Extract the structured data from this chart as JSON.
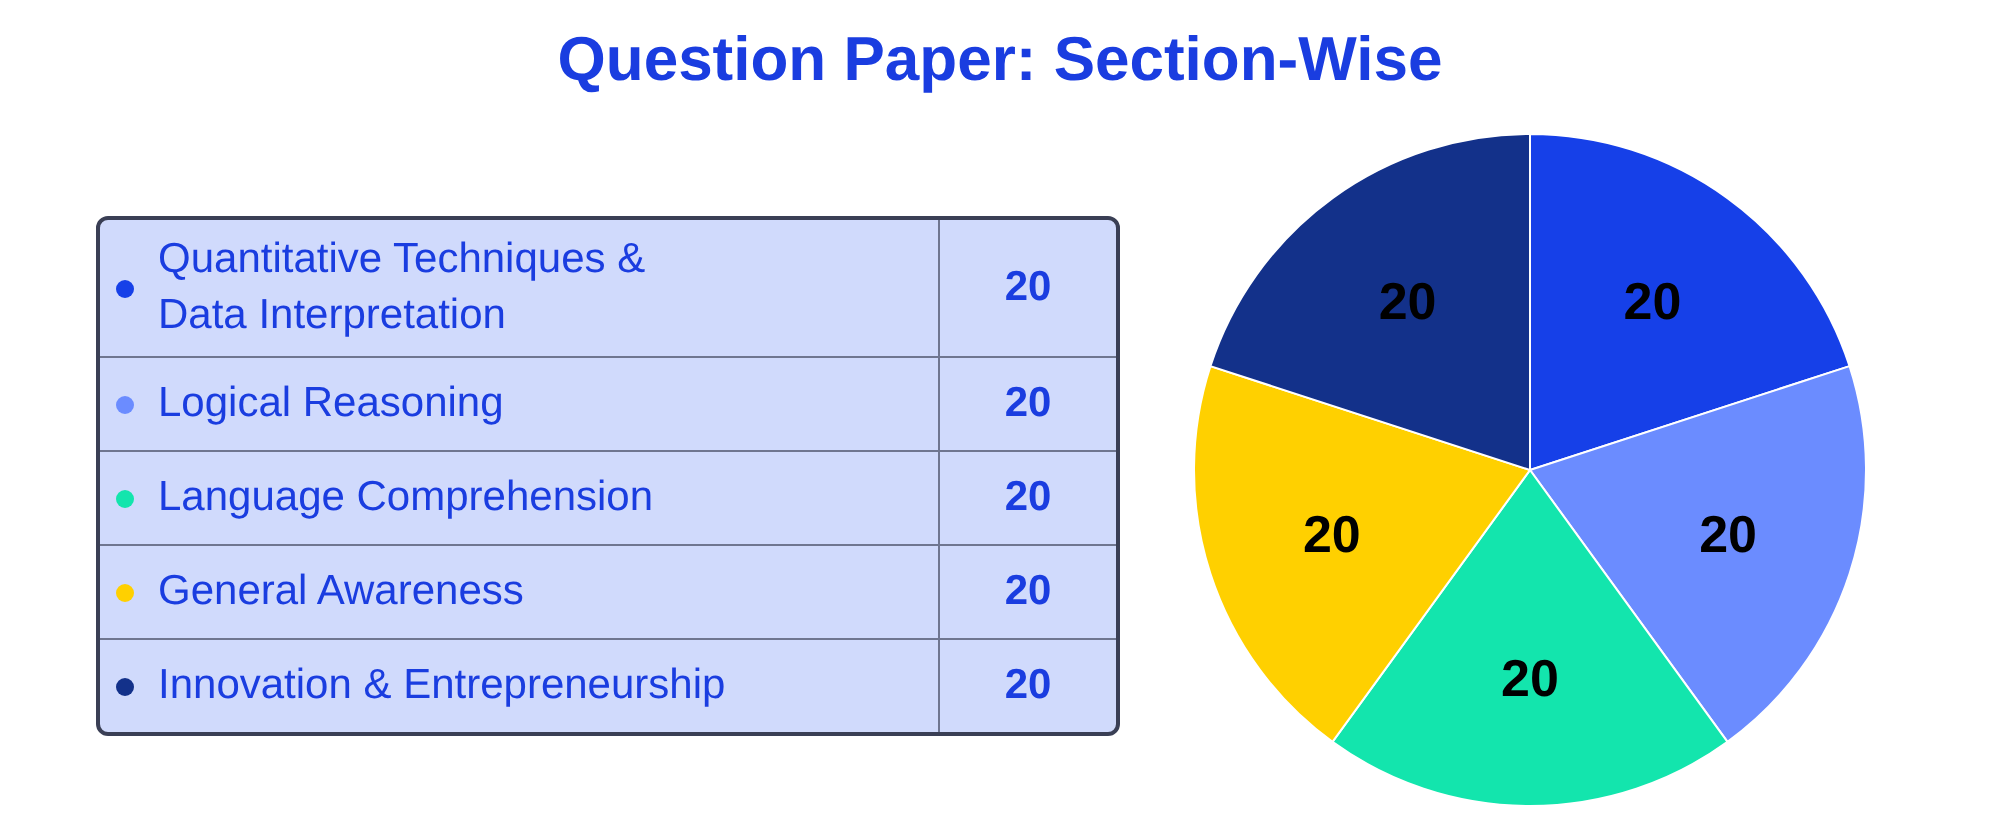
{
  "chart_data": {
    "type": "pie",
    "title": "Question Paper: Section-Wise",
    "categories": [
      "Quantitative Techniques & Data Interpretation",
      "Logical Reasoning",
      "Language Comprehension",
      "General Awareness",
      "Innovation & Entrepreneurship"
    ],
    "values": [
      20,
      20,
      20,
      20,
      20
    ],
    "colors": [
      "#1640e8",
      "#6b8cff",
      "#13e5ad",
      "#ffd000",
      "#13318a"
    ],
    "data_labels": true,
    "annotations": [
      {
        "text": "20",
        "x": "Quantitative Techniques & Data Interpretation"
      },
      {
        "text": "20",
        "x": "Logical Reasoning"
      },
      {
        "text": "20",
        "x": "Language Comprehension"
      },
      {
        "text": "20",
        "x": "General Awareness"
      },
      {
        "text": "20",
        "x": "Innovation & Entrepreneurship"
      }
    ],
    "legend": "left"
  }
}
